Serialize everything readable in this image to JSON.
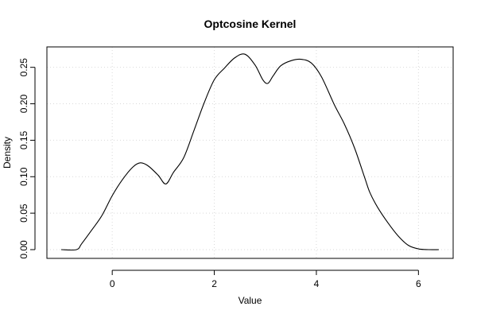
{
  "chart_data": {
    "type": "line",
    "title": "Optcosine Kernel",
    "xlabel": "Value",
    "ylabel": "Density",
    "xlim": [
      -1.28,
      6.68
    ],
    "ylim": [
      -0.012,
      0.278
    ],
    "x_ticks": [
      0,
      2,
      4,
      6
    ],
    "y_ticks": [
      0.0,
      0.05,
      0.1,
      0.15,
      0.2,
      0.25
    ],
    "x_tick_labels": [
      "0",
      "2",
      "4",
      "6"
    ],
    "y_tick_labels": [
      "0.00",
      "0.05",
      "0.10",
      "0.15",
      "0.20",
      "0.25"
    ],
    "grid": true,
    "line_color": "#000000",
    "series": [
      {
        "x": [
          -1.0,
          -0.7,
          -0.6,
          -0.4,
          -0.2,
          0.0,
          0.2,
          0.4,
          0.55,
          0.7,
          0.9,
          1.05,
          1.2,
          1.4,
          1.6,
          1.8,
          2.0,
          2.2,
          2.4,
          2.6,
          2.8,
          2.95,
          3.05,
          3.15,
          3.3,
          3.5,
          3.7,
          3.9,
          4.1,
          4.35,
          4.55,
          4.75,
          4.95,
          5.05,
          5.2,
          5.4,
          5.6,
          5.8,
          6.0,
          6.2,
          6.4
        ],
        "y": [
          0.0,
          0.0,
          0.008,
          0.027,
          0.047,
          0.074,
          0.096,
          0.113,
          0.119,
          0.115,
          0.102,
          0.09,
          0.106,
          0.126,
          0.163,
          0.201,
          0.233,
          0.249,
          0.263,
          0.268,
          0.253,
          0.233,
          0.228,
          0.238,
          0.252,
          0.259,
          0.261,
          0.256,
          0.237,
          0.199,
          0.172,
          0.139,
          0.098,
          0.078,
          0.058,
          0.037,
          0.019,
          0.006,
          0.001,
          0.0,
          0.0
        ]
      }
    ]
  }
}
